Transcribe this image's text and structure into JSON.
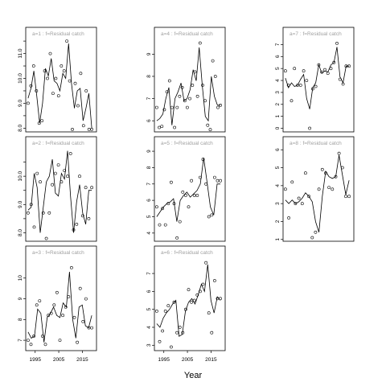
{
  "figure": {
    "xlabel": "Year",
    "colors": {
      "panel_border": "#000000",
      "strip_text": "#a0a0a0",
      "line": "#000000",
      "points": "#000000"
    }
  },
  "chart_data": [
    {
      "type": "line",
      "label": "a=1 : f=Residual catch",
      "xlim": [
        1991,
        2021
      ],
      "ylim": [
        7.85,
        11.6
      ],
      "yticks": [
        8.0,
        8.5,
        9.0,
        9.5,
        10.0,
        10.5,
        11.0,
        11.5
      ],
      "ytick_labels": [
        "8.0",
        "",
        "9.0",
        "",
        "10.0",
        "",
        "11.0",
        ""
      ],
      "x": [
        1992,
        1993,
        1994,
        1995,
        1996,
        1997,
        1998,
        1999,
        2000,
        2001,
        2002,
        2003,
        2004,
        2005,
        2006,
        2007,
        2008,
        2009,
        2010,
        2011,
        2012,
        2013,
        2014,
        2015,
        2016,
        2017
      ],
      "fitted": [
        9.2,
        9.6,
        10.3,
        9.3,
        8.2,
        9.0,
        10.4,
        10.1,
        10.8,
        9.9,
        9.8,
        9.5,
        10.2,
        10.0,
        11.4,
        9.8,
        8.8,
        9.5,
        9.6,
        8.3,
        8.8,
        9.4,
        8.0
      ],
      "observed": [
        9.0,
        9.7,
        10.5,
        9.5,
        8.2,
        8.3,
        10.3,
        10.0,
        11.0,
        9.4,
        10.0,
        9.3,
        10.5,
        10.3,
        11.5,
        9.9,
        7.95,
        9.8,
        8.9,
        10.2,
        8.1,
        9.5,
        7.95,
        7.95
      ]
    },
    {
      "type": "line",
      "label": "a=4 : f=Residual catch",
      "xlim": [
        1991,
        2021
      ],
      "ylim": [
        5.5,
        9.7
      ],
      "yticks": [
        6,
        7,
        8,
        9
      ],
      "ytick_labels": [
        "6",
        "7",
        "8",
        "9"
      ],
      "x": [
        1992,
        1993,
        1994,
        1995,
        1996,
        1997,
        1998,
        1999,
        2000,
        2001,
        2002,
        2003,
        2004,
        2005,
        2006,
        2007,
        2008,
        2009,
        2010,
        2011,
        2012,
        2013,
        2014,
        2015,
        2016,
        2017
      ],
      "fitted": [
        6.0,
        6.1,
        6.3,
        7.0,
        7.5,
        5.8,
        7.0,
        7.3,
        7.7,
        6.9,
        7.0,
        7.4,
        8.3,
        7.8,
        9.3,
        7.6,
        6.2,
        6.0,
        8.0,
        7.1,
        6.7,
        6.7
      ],
      "observed": [
        6.6,
        5.7,
        5.75,
        6.5,
        7.3,
        7.8,
        6.6,
        5.7,
        6.6,
        7.1,
        7.5,
        6.9,
        6.6,
        7.0,
        7.6,
        8.2,
        7.1,
        9.5,
        7.6,
        6.9,
        5.8,
        5.6,
        8.7,
        8.0,
        6.6,
        6.7
      ]
    },
    {
      "type": "line",
      "label": "a=7 : f=Residual catch",
      "xlim": [
        1991,
        2021
      ],
      "ylim": [
        -0.3,
        7.5
      ],
      "yticks": [
        0,
        1,
        2,
        3,
        4,
        5,
        6,
        7
      ],
      "ytick_labels": [
        "0",
        "1",
        "2",
        "3",
        "4",
        "5",
        "6",
        "7"
      ],
      "x": [
        1992,
        1993,
        1994,
        1995,
        1996,
        1997,
        1998,
        1999,
        2000,
        2001,
        2002,
        2003,
        2004,
        2005,
        2006,
        2007,
        2008,
        2009,
        2010,
        2011,
        2012,
        2013,
        2014,
        2015,
        2016,
        2017
      ],
      "fitted": [
        4.2,
        3.4,
        3.8,
        3.5,
        3.6,
        4.1,
        4.5,
        2.5,
        1.6,
        3.4,
        3.8,
        5.3,
        4.6,
        4.8,
        4.7,
        5.3,
        5.5,
        6.8,
        4.3,
        3.8,
        5.2,
        5.2
      ],
      "observed": [
        4.8,
        3.6,
        2.3,
        5.0,
        3.6,
        3.6,
        4.8,
        4.0,
        0.0,
        3.3,
        3.5,
        5.3,
        4.7,
        4.9,
        4.6,
        5.0,
        5.5,
        7.1,
        4.1,
        3.7,
        5.2,
        5.2
      ]
    },
    {
      "type": "line",
      "label": "a=2 : f=Residual catch",
      "xlim": [
        1991,
        2021
      ],
      "ylim": [
        7.7,
        11.0
      ],
      "yticks": [
        8.0,
        8.5,
        9.0,
        9.5,
        10.0,
        10.5
      ],
      "ytick_labels": [
        "8.0",
        "",
        "9.0",
        "",
        "10.0",
        ""
      ],
      "x": [
        1992,
        1993,
        1994,
        1995,
        1996,
        1997,
        1998,
        1999,
        2000,
        2001,
        2002,
        2003,
        2004,
        2005,
        2006,
        2007,
        2008,
        2009,
        2010,
        2011,
        2012,
        2013,
        2014,
        2015,
        2016,
        2017
      ],
      "fitted": [
        8.8,
        8.9,
        10.1,
        9.6,
        8.0,
        8.9,
        9.8,
        10.0,
        10.6,
        9.4,
        9.3,
        10.1,
        9.9,
        10.9,
        9.3,
        8.0,
        9.1,
        9.7,
        8.7,
        8.3,
        9.5,
        9.5
      ],
      "observed": [
        8.7,
        9.0,
        8.2,
        10.1,
        9.8,
        8.7,
        7.8,
        8.7,
        9.7,
        10.1,
        10.4,
        9.8,
        10.2,
        10.0,
        10.8,
        8.1,
        8.3,
        10.0,
        8.6,
        9.6,
        8.5,
        9.6
      ]
    },
    {
      "type": "line",
      "label": "a=5 : f=Residual catch",
      "xlim": [
        1991,
        2021
      ],
      "ylim": [
        3.5,
        9.2
      ],
      "yticks": [
        4,
        5,
        6,
        7,
        8,
        9
      ],
      "ytick_labels": [
        "4",
        "5",
        "6",
        "7",
        "8",
        "9"
      ],
      "x": [
        1992,
        1993,
        1994,
        1995,
        1996,
        1997,
        1998,
        1999,
        2000,
        2001,
        2002,
        2003,
        2004,
        2005,
        2006,
        2007,
        2008,
        2009,
        2010,
        2011,
        2012,
        2013,
        2014,
        2015,
        2016,
        2017
      ],
      "fitted": [
        5.0,
        5.3,
        5.6,
        5.8,
        5.9,
        6.1,
        4.7,
        6.0,
        6.3,
        6.5,
        6.2,
        6.4,
        6.6,
        7.0,
        8.6,
        7.1,
        5.6,
        5.1,
        7.0,
        7.0
      ],
      "observed": [
        5.6,
        4.5,
        5.5,
        4.5,
        5.8,
        7.1,
        5.8,
        3.7,
        4.7,
        6.5,
        6.3,
        5.6,
        7.2,
        6.3,
        6.3,
        7.4,
        8.5,
        7.0,
        5.0,
        5.1,
        7.4,
        7.2,
        7.2
      ]
    },
    {
      "type": "line",
      "label": "a=8 : f=Residual catch",
      "xlim": [
        1991,
        2021
      ],
      "ylim": [
        0.9,
        6.1
      ],
      "yticks": [
        1,
        2,
        3,
        4,
        5,
        6
      ],
      "ytick_labels": [
        "1",
        "2",
        "3",
        "4",
        "5",
        "6"
      ],
      "x": [
        1992,
        1993,
        1994,
        1995,
        1996,
        1997,
        1998,
        1999,
        2000,
        2001,
        2002,
        2003,
        2004,
        2005,
        2006,
        2007,
        2008,
        2009,
        2010,
        2011,
        2012,
        2013,
        2014,
        2015,
        2016,
        2017
      ],
      "fitted": [
        3.2,
        3.0,
        3.2,
        3.0,
        3.1,
        3.3,
        3.6,
        3.4,
        3.1,
        2.0,
        1.4,
        3.4,
        4.8,
        4.5,
        4.4,
        4.5,
        5.7,
        4.6,
        3.5,
        4.3
      ],
      "observed": [
        3.8,
        2.2,
        4.2,
        3.0,
        3.3,
        3.0,
        4.7,
        3.4,
        1.1,
        1.4,
        3.8,
        4.9,
        4.7,
        3.9,
        3.8,
        4.5,
        5.8,
        5.0,
        3.4,
        3.4
      ]
    },
    {
      "type": "line",
      "label": "a=3 : f=Residual catch",
      "xlim": [
        1991,
        2021
      ],
      "ylim": [
        6.5,
        11.0
      ],
      "yticks": [
        7,
        8,
        9,
        10
      ],
      "ytick_labels": [
        "7",
        "8",
        "9",
        "10"
      ],
      "x": [
        1992,
        1993,
        1994,
        1995,
        1996,
        1997,
        1998,
        1999,
        2000,
        2001,
        2002,
        2003,
        2004,
        2005,
        2006,
        2007,
        2008,
        2009,
        2010,
        2011,
        2012,
        2013,
        2014,
        2015,
        2016,
        2017
      ],
      "fitted": [
        7.4,
        7.1,
        7.2,
        8.5,
        8.3,
        6.9,
        8.1,
        8.3,
        8.6,
        8.2,
        8.1,
        8.8,
        8.6,
        10.3,
        8.0,
        7.1,
        8.6,
        8.7,
        7.7,
        7.6,
        8.2
      ],
      "observed": [
        7.0,
        6.8,
        7.2,
        8.7,
        8.9,
        7.2,
        6.8,
        8.2,
        8.3,
        8.7,
        9.3,
        7.0,
        8.2,
        8.6,
        9.1,
        10.5,
        8.1,
        6.9,
        9.5,
        7.9,
        9.0,
        7.6,
        7.6
      ]
    },
    {
      "type": "line",
      "label": "a=6 : f=Residual catch",
      "xlim": [
        1991,
        2021
      ],
      "ylim": [
        2.7,
        7.9
      ],
      "yticks": [
        3,
        4,
        5,
        6,
        7
      ],
      "ytick_labels": [
        "3",
        "4",
        "5",
        "6",
        "7"
      ],
      "x": [
        1992,
        1993,
        1994,
        1995,
        1996,
        1997,
        1998,
        1999,
        2000,
        2001,
        2002,
        2003,
        2004,
        2005,
        2006,
        2007,
        2008,
        2009,
        2010,
        2011,
        2012,
        2013,
        2014,
        2015,
        2016,
        2017
      ],
      "fitted": [
        4.2,
        4.0,
        4.5,
        4.8,
        5.0,
        5.3,
        5.5,
        3.5,
        3.6,
        4.9,
        5.4,
        5.6,
        5.3,
        5.8,
        6.4,
        6.0,
        7.5,
        5.5,
        4.8,
        5.7,
        5.5
      ],
      "observed": [
        4.9,
        3.2,
        3.8,
        4.9,
        5.2,
        2.9,
        5.4,
        3.7,
        4.0,
        3.7,
        5.0,
        6.1,
        5.4,
        5.5,
        5.8,
        6.0,
        6.4,
        7.6,
        4.8,
        3.7,
        6.6,
        5.6,
        5.6
      ]
    }
  ],
  "axes": {
    "xticks": [
      1995,
      2005,
      2015
    ],
    "xtick_labels": [
      "1995",
      "2005",
      "2015"
    ]
  }
}
